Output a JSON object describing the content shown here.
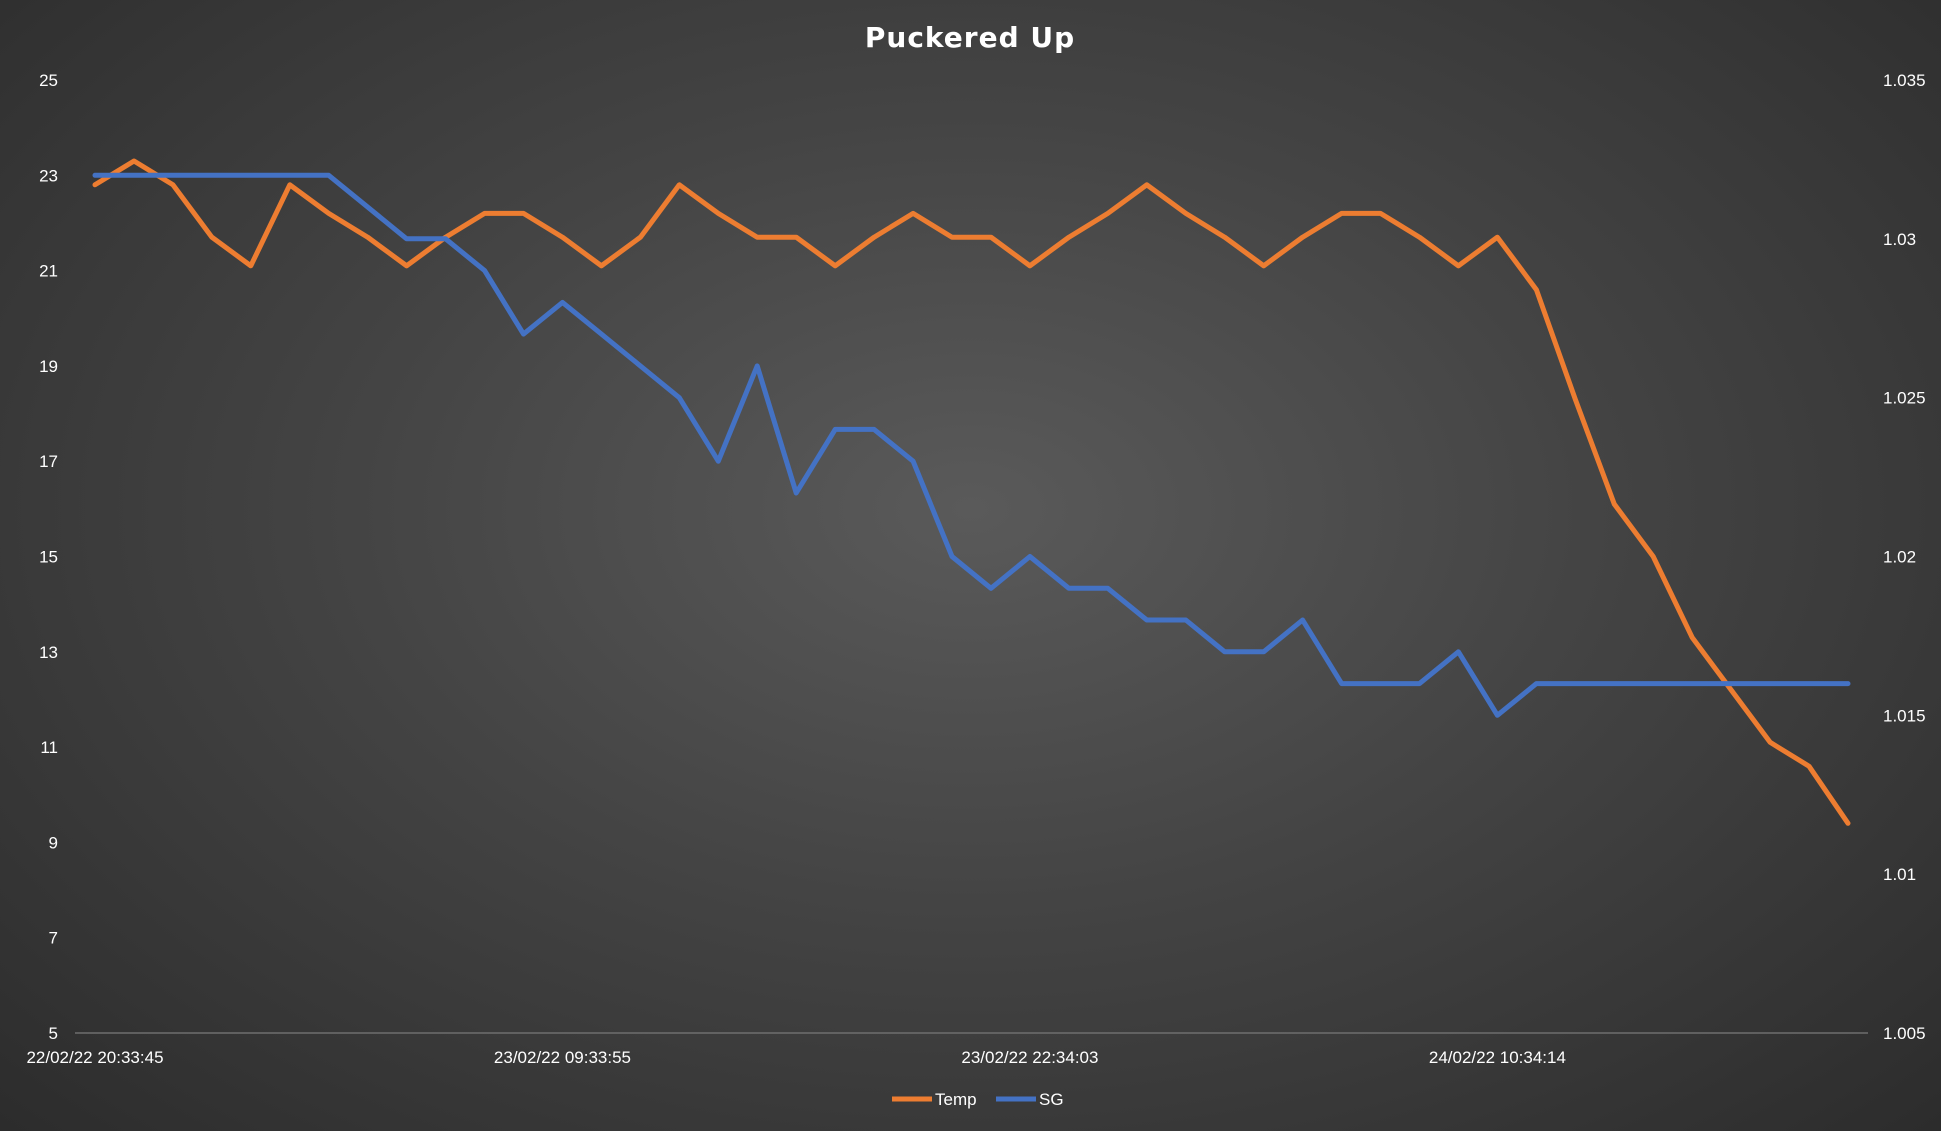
{
  "chart_data": {
    "type": "line",
    "title": "Puckered Up",
    "xlabel": "",
    "ylabel": "",
    "y2label": "",
    "x_tick_labels": [
      "22/02/22 20:33:45",
      "23/02/22 09:33:55",
      "23/02/22 22:34:03",
      "24/02/22 10:34:14"
    ],
    "x_tick_indices": [
      0,
      12,
      24,
      36
    ],
    "y_ticks": [
      "5",
      "7",
      "9",
      "11",
      "13",
      "15",
      "17",
      "19",
      "21",
      "23",
      "25"
    ],
    "y_range": [
      5,
      25
    ],
    "y2_ticks": [
      "1.005",
      "1.01",
      "1.015",
      "1.02",
      "1.025",
      "1.03",
      "1.035"
    ],
    "y2_range": [
      1.005,
      1.035
    ],
    "grid": false,
    "legend_position": "bottom",
    "series": [
      {
        "name": "Temp",
        "axis": "left",
        "color": "#ed7d31",
        "values": [
          22.8,
          23.3,
          22.8,
          21.7,
          21.1,
          22.8,
          22.2,
          21.7,
          21.1,
          21.7,
          22.2,
          22.2,
          21.7,
          21.1,
          21.7,
          22.8,
          22.2,
          21.7,
          21.7,
          21.1,
          21.7,
          22.2,
          21.7,
          21.7,
          21.1,
          21.7,
          22.2,
          22.8,
          22.2,
          21.7,
          21.1,
          21.7,
          22.2,
          22.2,
          21.7,
          21.1,
          21.7,
          20.6,
          18.3,
          16.1,
          15.0,
          13.3,
          12.2,
          11.1,
          10.6,
          9.4
        ]
      },
      {
        "name": "SG",
        "axis": "right",
        "color": "#4472c4",
        "values": [
          1.032,
          1.032,
          1.032,
          1.032,
          1.032,
          1.032,
          1.032,
          1.031,
          1.03,
          1.03,
          1.029,
          1.027,
          1.028,
          1.027,
          1.026,
          1.025,
          1.023,
          1.026,
          1.022,
          1.024,
          1.024,
          1.023,
          1.02,
          1.019,
          1.02,
          1.019,
          1.019,
          1.018,
          1.018,
          1.017,
          1.017,
          1.018,
          1.016,
          1.016,
          1.016,
          1.017,
          1.015,
          1.016,
          1.016,
          1.016,
          1.016,
          1.016,
          1.016,
          1.016,
          1.016,
          1.016
        ]
      }
    ]
  }
}
